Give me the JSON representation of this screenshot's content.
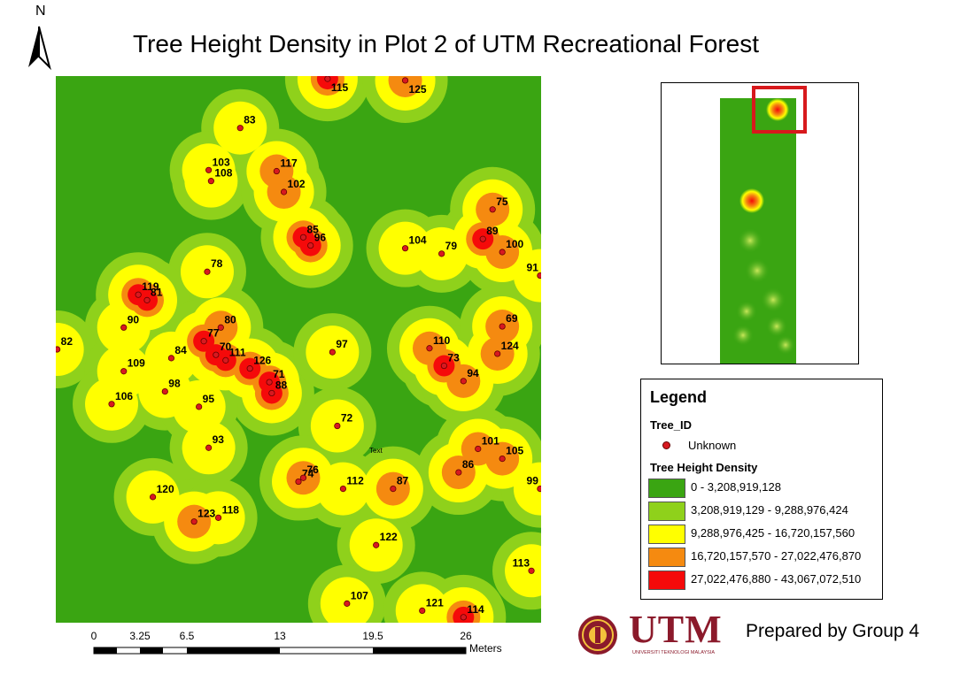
{
  "title": "Tree Height Density in Plot 2 of UTM Recreational Forest",
  "north_arrow": {
    "label": "N"
  },
  "map": {
    "colors": {
      "class1": "#3aa512",
      "class2": "#8fd11b",
      "class3": "#ffff00",
      "class4": "#f58a10",
      "class5": "#f50a0a",
      "point": "#d71920"
    },
    "annotation": "Text",
    "points": [
      {
        "id": "115",
        "x": 0.56,
        "y": 0.005
      },
      {
        "id": "125",
        "x": 0.72,
        "y": 0.008
      },
      {
        "id": "83",
        "x": 0.38,
        "y": 0.095
      },
      {
        "id": "103",
        "x": 0.315,
        "y": 0.172
      },
      {
        "id": "108",
        "x": 0.32,
        "y": 0.192
      },
      {
        "id": "117",
        "x": 0.455,
        "y": 0.174
      },
      {
        "id": "102",
        "x": 0.47,
        "y": 0.212
      },
      {
        "id": "75",
        "x": 0.9,
        "y": 0.244
      },
      {
        "id": "85",
        "x": 0.51,
        "y": 0.295
      },
      {
        "id": "96",
        "x": 0.525,
        "y": 0.31
      },
      {
        "id": "89",
        "x": 0.88,
        "y": 0.298
      },
      {
        "id": "104",
        "x": 0.72,
        "y": 0.315
      },
      {
        "id": "79",
        "x": 0.795,
        "y": 0.325
      },
      {
        "id": "100",
        "x": 0.92,
        "y": 0.322
      },
      {
        "id": "91",
        "x": 0.998,
        "y": 0.365
      },
      {
        "id": "78",
        "x": 0.312,
        "y": 0.358
      },
      {
        "id": "119",
        "x": 0.17,
        "y": 0.4
      },
      {
        "id": "81",
        "x": 0.188,
        "y": 0.41
      },
      {
        "id": "90",
        "x": 0.14,
        "y": 0.46
      },
      {
        "id": "80",
        "x": 0.34,
        "y": 0.46
      },
      {
        "id": "77",
        "x": 0.305,
        "y": 0.485
      },
      {
        "id": "70",
        "x": 0.33,
        "y": 0.51
      },
      {
        "id": "84",
        "x": 0.238,
        "y": 0.516
      },
      {
        "id": "111",
        "x": 0.35,
        "y": 0.52
      },
      {
        "id": "126",
        "x": 0.4,
        "y": 0.535
      },
      {
        "id": "71",
        "x": 0.44,
        "y": 0.56
      },
      {
        "id": "88",
        "x": 0.445,
        "y": 0.58
      },
      {
        "id": "82",
        "x": 0.003,
        "y": 0.5
      },
      {
        "id": "109",
        "x": 0.14,
        "y": 0.54
      },
      {
        "id": "97",
        "x": 0.57,
        "y": 0.505
      },
      {
        "id": "110",
        "x": 0.77,
        "y": 0.498
      },
      {
        "id": "73",
        "x": 0.8,
        "y": 0.53
      },
      {
        "id": "69",
        "x": 0.92,
        "y": 0.458
      },
      {
        "id": "124",
        "x": 0.91,
        "y": 0.508
      },
      {
        "id": "94",
        "x": 0.84,
        "y": 0.558
      },
      {
        "id": "98",
        "x": 0.225,
        "y": 0.577
      },
      {
        "id": "106",
        "x": 0.115,
        "y": 0.6
      },
      {
        "id": "95",
        "x": 0.295,
        "y": 0.605
      },
      {
        "id": "72",
        "x": 0.58,
        "y": 0.64
      },
      {
        "id": "93",
        "x": 0.315,
        "y": 0.68
      },
      {
        "id": "101",
        "x": 0.87,
        "y": 0.682
      },
      {
        "id": "105",
        "x": 0.92,
        "y": 0.7
      },
      {
        "id": "86",
        "x": 0.83,
        "y": 0.725
      },
      {
        "id": "74",
        "x": 0.5,
        "y": 0.742
      },
      {
        "id": "76",
        "x": 0.51,
        "y": 0.735
      },
      {
        "id": "112",
        "x": 0.592,
        "y": 0.755
      },
      {
        "id": "87",
        "x": 0.695,
        "y": 0.755
      },
      {
        "id": "99",
        "x": 0.998,
        "y": 0.755
      },
      {
        "id": "120",
        "x": 0.2,
        "y": 0.77
      },
      {
        "id": "123",
        "x": 0.285,
        "y": 0.815
      },
      {
        "id": "118",
        "x": 0.335,
        "y": 0.808
      },
      {
        "id": "122",
        "x": 0.66,
        "y": 0.858
      },
      {
        "id": "113",
        "x": 0.98,
        "y": 0.905
      },
      {
        "id": "107",
        "x": 0.6,
        "y": 0.965
      },
      {
        "id": "121",
        "x": 0.755,
        "y": 0.978
      },
      {
        "id": "114",
        "x": 0.84,
        "y": 0.99
      }
    ]
  },
  "legend": {
    "title": "Legend",
    "point_layer": "Tree_ID",
    "point_label": "Unknown",
    "raster_layer": "Tree Height Density",
    "classes": [
      {
        "label": "0 - 3,208,919,128",
        "color": "#3aa512"
      },
      {
        "label": "3,208,919,129 - 9,288,976,424",
        "color": "#8fd11b"
      },
      {
        "label": "9,288,976,425 - 16,720,157,560",
        "color": "#ffff00"
      },
      {
        "label": "16,720,157,570 - 27,022,476,870",
        "color": "#f58a10"
      },
      {
        "label": "27,022,476,880 - 43,067,072,510",
        "color": "#f50a0a"
      }
    ]
  },
  "scale_bar": {
    "labels": [
      "0",
      "3.25",
      "6.5",
      "13",
      "19.5",
      "26"
    ],
    "unit": "Meters"
  },
  "logo": {
    "text": "UTM",
    "subtext": "UNIVERSITI TEKNOLOGI MALAYSIA"
  },
  "credit": "Prepared by Group 4"
}
